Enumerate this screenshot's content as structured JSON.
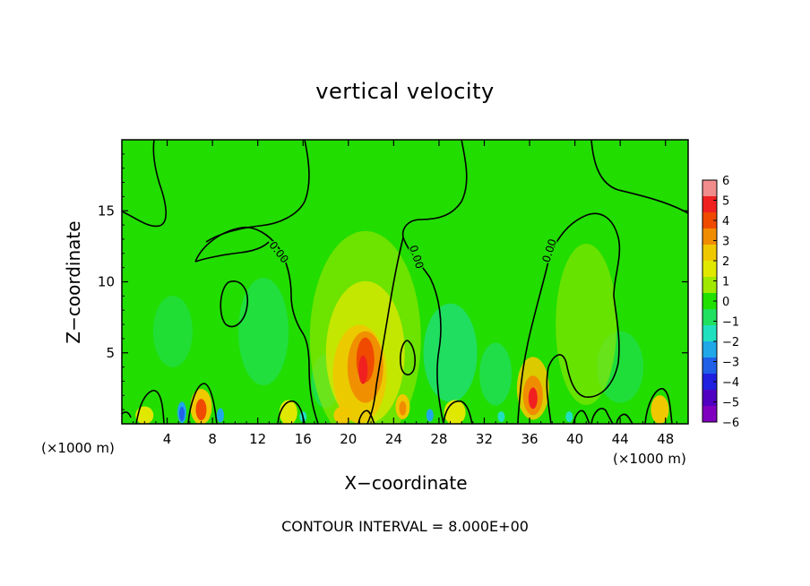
{
  "chart_data": {
    "type": "heatmap",
    "title": "vertical velocity",
    "xlabel": "X−coordinate",
    "ylabel": "Z−coordinate",
    "x_unit": "(×1000 m)",
    "y_unit": "(×1000 m)",
    "xlim": [
      0,
      50
    ],
    "ylim": [
      0,
      20
    ],
    "x_ticks": [
      4,
      8,
      12,
      16,
      20,
      24,
      28,
      32,
      36,
      40,
      44,
      48
    ],
    "y_ticks": [
      5,
      10,
      15
    ],
    "footnote": "CONTOUR INTERVAL = 8.000E+00",
    "contour_label": "0.00",
    "colorbar": {
      "ticks": [
        "6",
        "5",
        "4",
        "3",
        "2",
        "1",
        "0",
        "−1",
        "−2",
        "−3",
        "−4",
        "−5",
        "−6"
      ],
      "colors": [
        "#f08c8c",
        "#f02020",
        "#f04a00",
        "#f08c00",
        "#f0c800",
        "#e0e800",
        "#a0e800",
        "#20e000",
        "#20e060",
        "#20e0c0",
        "#20a8e8",
        "#2060e8",
        "#2020e0",
        "#5000c0",
        "#8000c0"
      ]
    },
    "features": [
      {
        "kind": "updraft",
        "x": 21.5,
        "z": 4.5,
        "value": 5.5
      },
      {
        "kind": "updraft",
        "x": 36.3,
        "z": 2.0,
        "value": 5.0
      },
      {
        "kind": "updraft",
        "x": 7.0,
        "z": 1.0,
        "value": 4.0
      },
      {
        "kind": "updraft",
        "x": 24.8,
        "z": 1.2,
        "value": 3.5
      },
      {
        "kind": "updraft",
        "x": 47.5,
        "z": 1.0,
        "value": 2.5
      },
      {
        "kind": "downdraft",
        "x": 5.3,
        "z": 0.8,
        "value": -4.5
      },
      {
        "kind": "downdraft",
        "x": 8.7,
        "z": 0.6,
        "value": -3.5
      },
      {
        "kind": "downdraft",
        "x": 27.2,
        "z": 0.6,
        "value": -3.0
      },
      {
        "kind": "downdraft",
        "x": 12.5,
        "z": 6.5,
        "value": -1.6
      },
      {
        "kind": "downdraft",
        "x": 29.0,
        "z": 5.0,
        "value": -1.5
      }
    ]
  }
}
